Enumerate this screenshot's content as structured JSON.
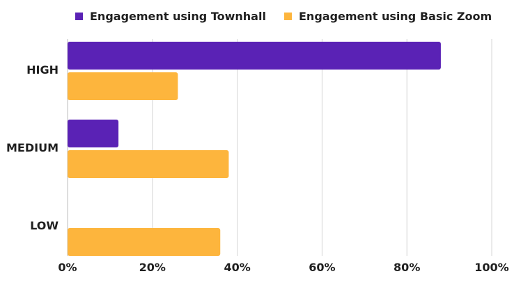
{
  "chart_data": {
    "type": "bar",
    "orientation": "horizontal",
    "title": "",
    "xlabel": "",
    "ylabel": "",
    "categories": [
      "HIGH",
      "MEDIUM",
      "LOW"
    ],
    "series": [
      {
        "name": "Engagement using Townhall",
        "color": "#5a22b5",
        "values": [
          88,
          12,
          0
        ]
      },
      {
        "name": "Engagement using Basic Zoom",
        "color": "#fdb53d",
        "values": [
          26,
          38,
          36
        ]
      }
    ],
    "xlim": [
      0,
      100
    ],
    "ticks": [
      "0%",
      "20%",
      "40%",
      "60%",
      "80%",
      "100%"
    ],
    "tick_values": [
      0,
      20,
      40,
      60,
      80,
      100
    ],
    "grid": "vertical",
    "legend": "top"
  }
}
